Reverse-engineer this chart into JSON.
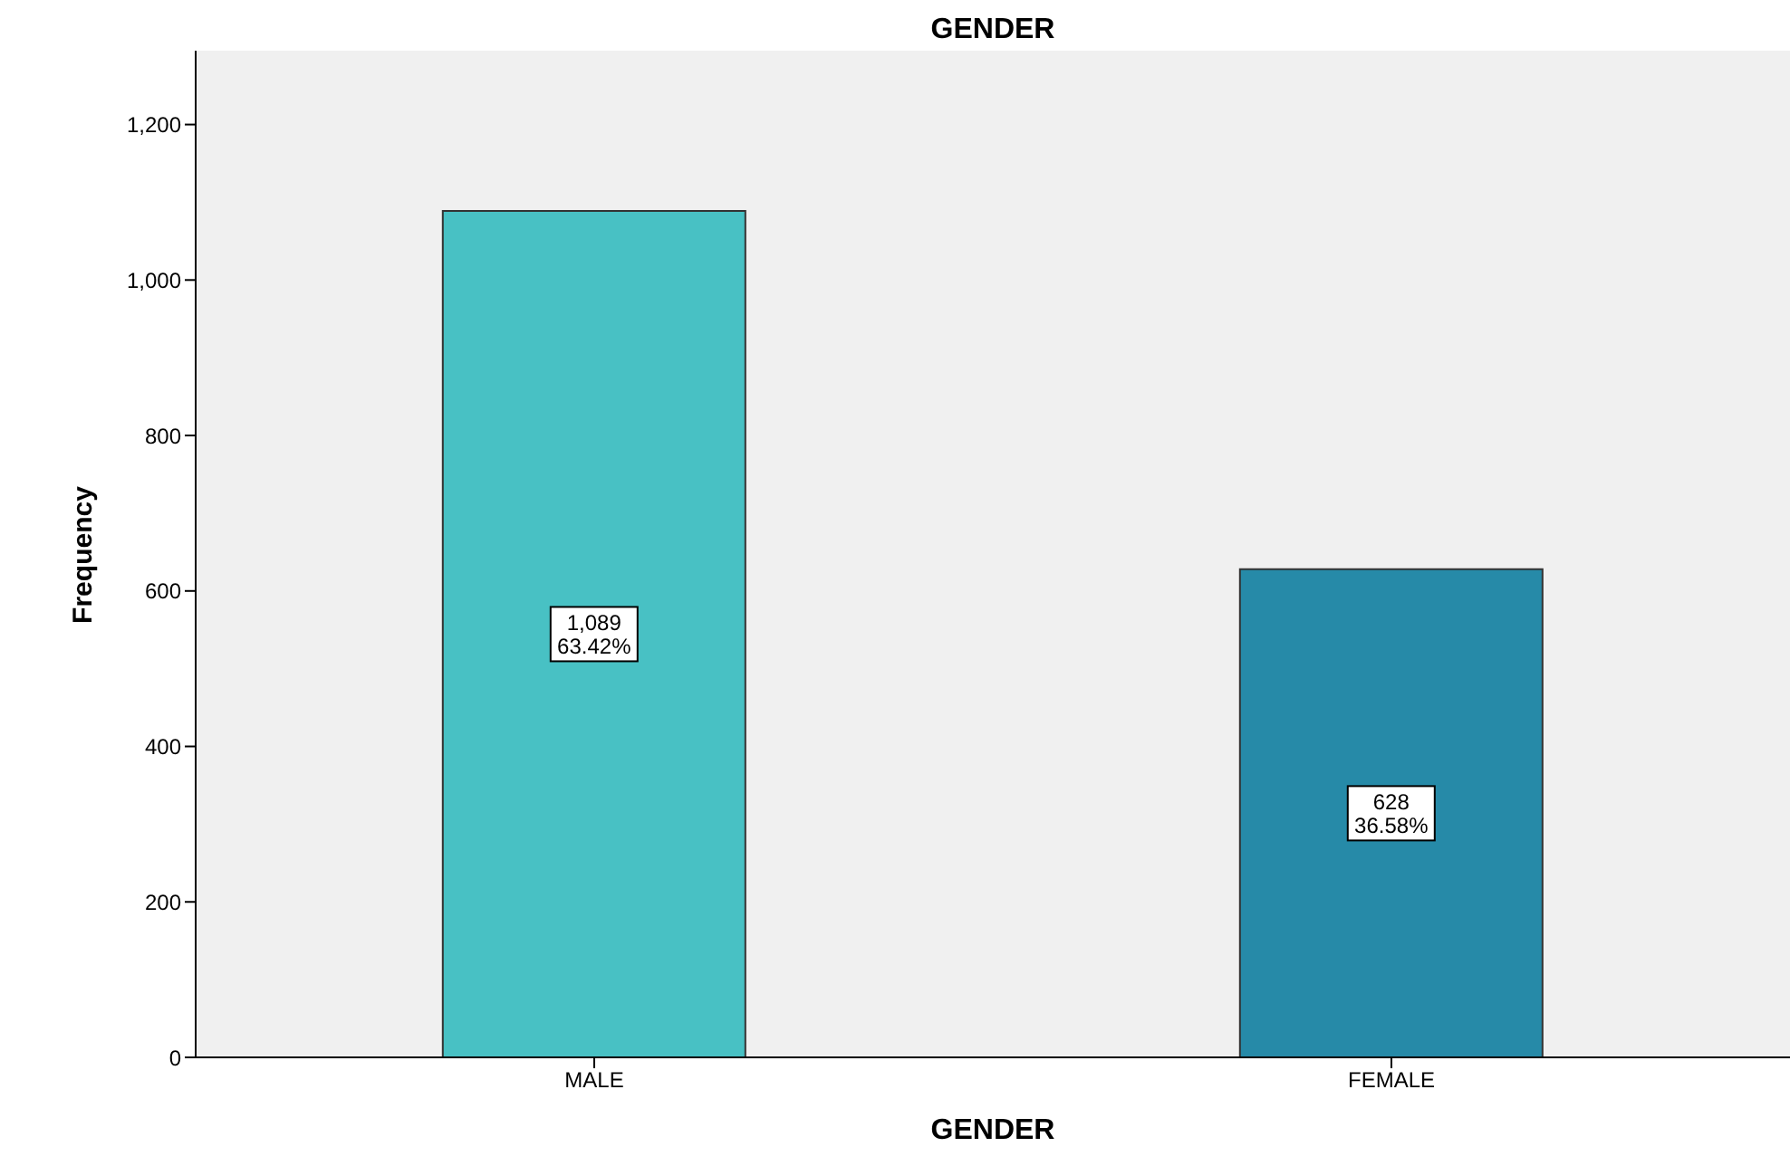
{
  "chart_data": {
    "type": "bar",
    "title": "GENDER",
    "xlabel": "GENDER",
    "ylabel": "Frequency",
    "categories": [
      "MALE",
      "FEMALE"
    ],
    "values": [
      1089,
      628
    ],
    "colors": [
      "#48c1c4",
      "#268aa8"
    ],
    "value_labels": [
      "1,089\n63.42%",
      "628\n36.58%"
    ],
    "ylim": [
      0,
      1295
    ],
    "yticks": [
      {
        "value": 0,
        "label": "0"
      },
      {
        "value": 200,
        "label": "200"
      },
      {
        "value": 400,
        "label": "400"
      },
      {
        "value": 600,
        "label": "600"
      },
      {
        "value": 800,
        "label": "800"
      },
      {
        "value": 1000,
        "label": "1,000"
      },
      {
        "value": 1200,
        "label": "1,200"
      }
    ],
    "grid": false,
    "legend": false
  }
}
